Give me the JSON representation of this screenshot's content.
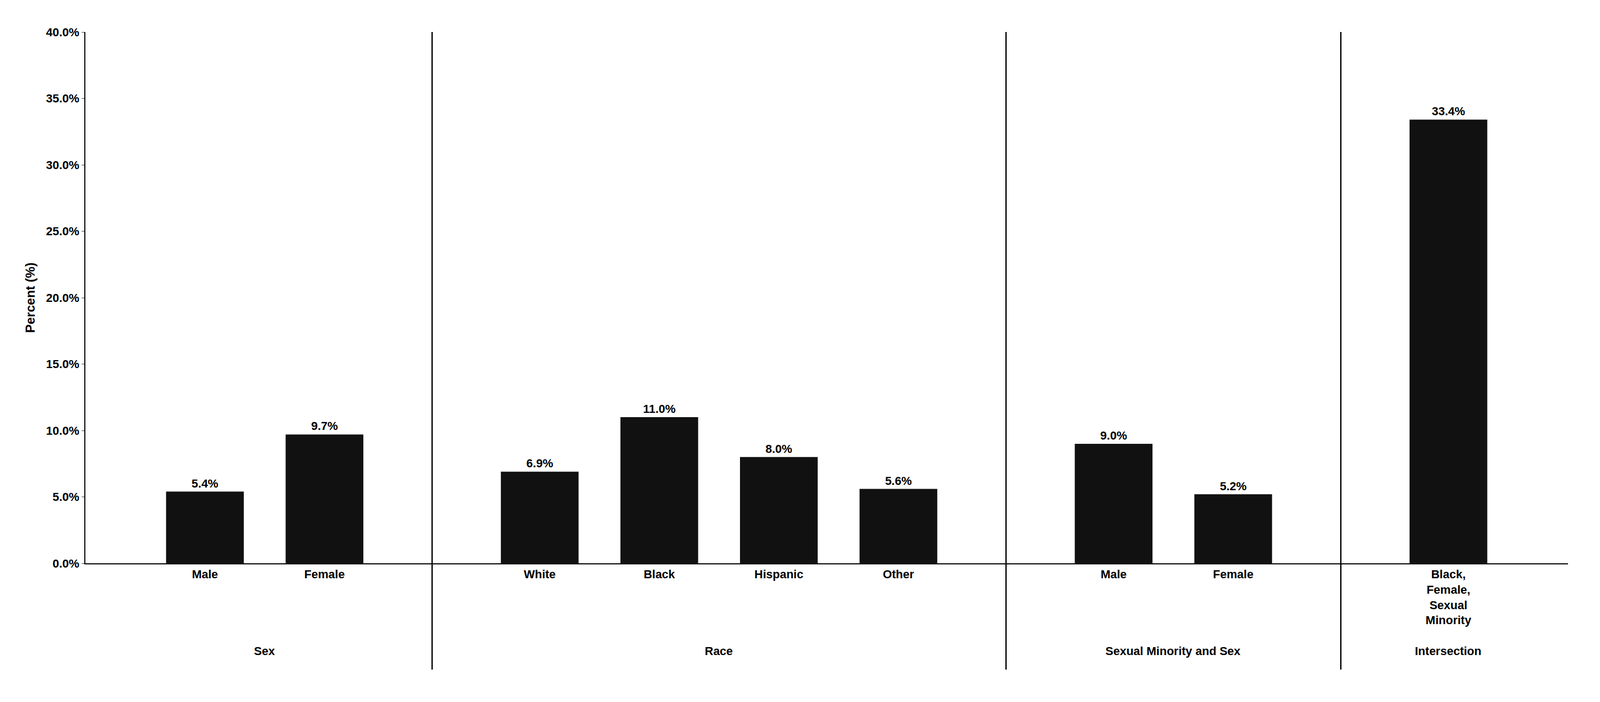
{
  "chart_data": {
    "type": "bar",
    "categories": [
      "Male",
      "Female",
      "White",
      "Black",
      "Hispanic",
      "Other",
      "Male",
      "Female",
      "Black,\nFemale,\nSexual\nMinority"
    ],
    "groups": [
      "Sex",
      "Sex",
      "Race",
      "Race",
      "Race",
      "Race",
      "Sexual Minority and Sex",
      "Sexual Minority and Sex",
      "Intersection"
    ],
    "values": [
      5.4,
      9.7,
      6.9,
      11.0,
      8.0,
      5.6,
      9.0,
      5.2,
      33.4
    ],
    "value_labels": [
      "5.4%",
      "9.7%",
      "6.9%",
      "11.0%",
      "8.0%",
      "5.6%",
      "9.0%",
      "5.2%",
      "33.4%"
    ],
    "data_labels": true,
    "color": "#111111",
    "ylabel": "Percent (%)",
    "ylim": [
      0,
      40
    ],
    "yticks": [
      {
        "value": 0,
        "label": "0.0%"
      },
      {
        "value": 5,
        "label": "5.0%"
      },
      {
        "value": 10,
        "label": "10.0%"
      },
      {
        "value": 15,
        "label": "15.0%"
      },
      {
        "value": 20,
        "label": "20.0%"
      },
      {
        "value": 25,
        "label": "25.0%"
      },
      {
        "value": 30,
        "label": "30.0%"
      },
      {
        "value": 35,
        "label": "35.0%"
      },
      {
        "value": 40,
        "label": "40.0%"
      }
    ],
    "grid": false
  }
}
